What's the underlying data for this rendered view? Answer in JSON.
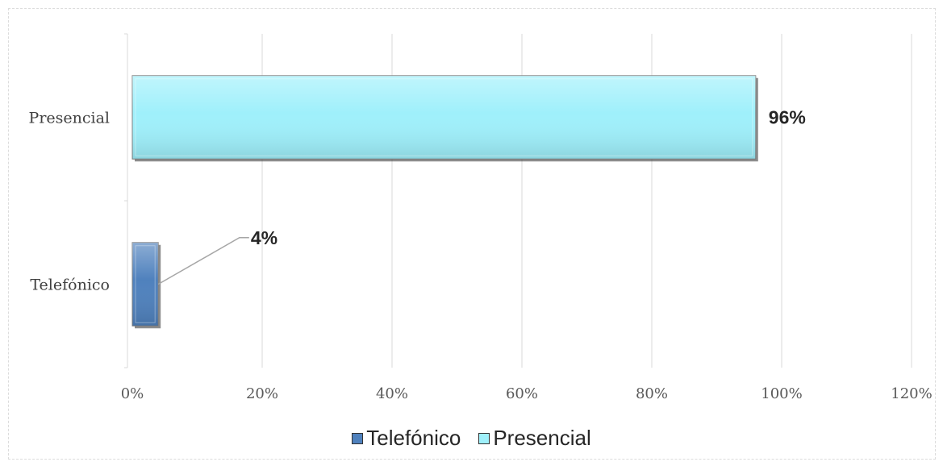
{
  "chart_data": {
    "type": "bar",
    "orientation": "horizontal",
    "categories": [
      "Telefónico",
      "Presencial"
    ],
    "series": [
      {
        "name": "Telefónico",
        "category": "Telefónico",
        "value": 4,
        "data_label": "4%",
        "color": "#4f81bd"
      },
      {
        "name": "Presencial",
        "category": "Presencial",
        "value": 96,
        "data_label": "96%",
        "color": "#9ff0fb"
      }
    ],
    "xlim": [
      0,
      120
    ],
    "xticks": [
      0,
      20,
      40,
      60,
      80,
      100,
      120
    ],
    "xtick_labels": [
      "0%",
      "20%",
      "40%",
      "60%",
      "80%",
      "100%",
      "120%"
    ],
    "grid": "vertical",
    "legend": {
      "position": "bottom",
      "entries": [
        "Telefónico",
        "Presencial"
      ]
    },
    "title": "",
    "xlabel": "",
    "ylabel": ""
  }
}
